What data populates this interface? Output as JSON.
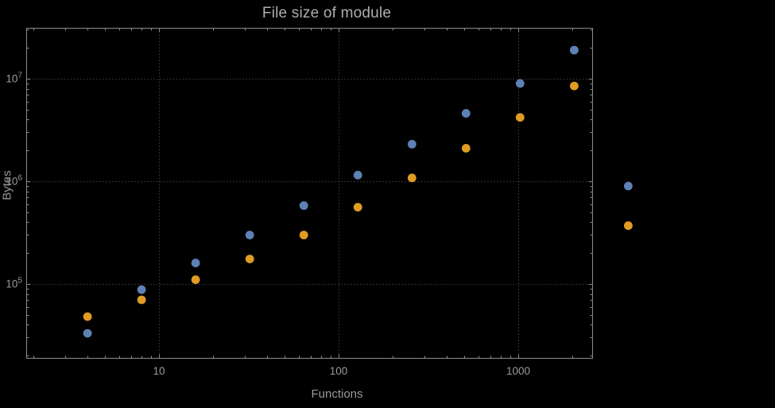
{
  "chart_data": {
    "type": "scatter",
    "title": "File size of module",
    "xlabel": "Functions",
    "ylabel": "Bytes",
    "x_scale": "log",
    "y_scale": "log",
    "xlim": [
      1.8,
      2580
    ],
    "ylim": [
      19000,
      31600000
    ],
    "grid": "dotted",
    "legend": "none",
    "x_ticks": [
      {
        "value": 10,
        "label": "10"
      },
      {
        "value": 100,
        "label": "100"
      },
      {
        "value": 1000,
        "label": "1000"
      }
    ],
    "y_ticks": [
      {
        "value": 100000,
        "mantissa": "10",
        "exponent": "5"
      },
      {
        "value": 1000000,
        "mantissa": "10",
        "exponent": "6"
      },
      {
        "value": 10000000,
        "mantissa": "10",
        "exponent": "7"
      }
    ],
    "series": [
      {
        "name": "blue",
        "color": "#5e81b5",
        "points": [
          [
            4,
            33000
          ],
          [
            8,
            88000
          ],
          [
            16,
            160000
          ],
          [
            32,
            300000
          ],
          [
            64,
            580000
          ],
          [
            128,
            1150000
          ],
          [
            256,
            2300000
          ],
          [
            512,
            4600000
          ],
          [
            1024,
            9000000
          ],
          [
            2048,
            19000000
          ],
          [
            4096,
            900000
          ]
        ]
      },
      {
        "name": "orange",
        "color": "#e19c24",
        "points": [
          [
            4,
            48000
          ],
          [
            8,
            70000
          ],
          [
            16,
            110000
          ],
          [
            32,
            175000
          ],
          [
            64,
            300000
          ],
          [
            128,
            560000
          ],
          [
            256,
            1080000
          ],
          [
            512,
            2100000
          ],
          [
            1024,
            4200000
          ],
          [
            2048,
            8500000
          ],
          [
            4096,
            370000
          ]
        ]
      }
    ],
    "styles": {
      "background_color": "#000000",
      "frame_color": "#8c8c8a",
      "grid_color": "#5f5f5d",
      "label_color": "#9a9a98",
      "title_color": "#adadab",
      "point_radius": 5.4
    }
  }
}
